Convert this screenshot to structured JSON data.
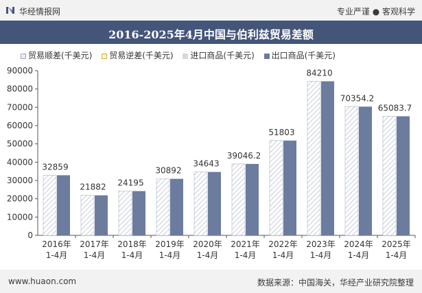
{
  "header": {
    "site_name": "华经情报网",
    "slogan": "专业严谨 ● 客观科学"
  },
  "footer": {
    "website": "www.huaon.com",
    "source": "数据来源：中国海关，华经产业研究院整理"
  },
  "colors": {
    "title_bar": "#44557a",
    "export_bar": "#6b7c9e",
    "surplus_hatch": "#c5cdda"
  },
  "chart_data": {
    "type": "bar",
    "title": "2016-2025年4月中国与伯利兹贸易差额",
    "xlabel": "",
    "ylabel": "",
    "ylim": [
      0,
      90000
    ],
    "yticks": [
      "0",
      "10000",
      "20000",
      "30000",
      "40000",
      "50000",
      "60000",
      "70000",
      "80000",
      "90000"
    ],
    "categories": [
      [
        "2016年",
        "1-4月"
      ],
      [
        "2017年",
        "1-4月"
      ],
      [
        "2018年",
        "1-4月"
      ],
      [
        "2019年",
        "1-4月"
      ],
      [
        "2020年",
        "1-4月"
      ],
      [
        "2021年",
        "1-4月"
      ],
      [
        "2022年",
        "1-4月"
      ],
      [
        "2023年",
        "1-4月"
      ],
      [
        "2024年",
        "1-4月"
      ],
      [
        "2025年",
        "1-4月"
      ]
    ],
    "legend_position": "top",
    "series": [
      {
        "name": "贸易顺差(千美元)",
        "values": [
          32859,
          21882,
          24195,
          30892,
          34643,
          39046.2,
          51803,
          84210,
          70354.2,
          65083.7
        ],
        "labels": [
          "32859",
          "21882",
          "24195",
          "30892",
          "34643",
          "39046.2",
          "51803",
          "84210",
          "70354.2",
          "65083.7"
        ]
      },
      {
        "name": "贸易逆差(千美元)",
        "values": [
          0,
          0,
          0,
          0,
          0,
          0,
          0,
          0,
          0,
          0
        ]
      },
      {
        "name": "进口商品(千美元)",
        "values": [
          0,
          0,
          0,
          0,
          0,
          0,
          0,
          0,
          0,
          0
        ]
      },
      {
        "name": "出口商品(千美元)",
        "values": [
          32859,
          21882,
          24195,
          30892,
          34643,
          39046.2,
          51803,
          84210,
          70354.2,
          65083.7
        ]
      }
    ],
    "grid": false
  }
}
